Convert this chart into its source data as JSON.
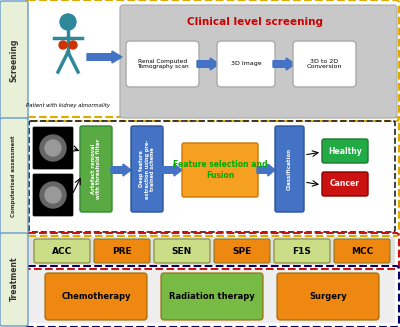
{
  "bg_color": "#ffffff",
  "screening_label": "Screening",
  "computerised_label": "Computerised assessment",
  "treatment_label": "Treatment",
  "clinical_title": "Clinical level screening",
  "patient_label": "Patient with kidney abnormality",
  "screening_boxes": [
    "Renal Computed\nTomography scan",
    "3D Image",
    "3D to 2D\nConversion"
  ],
  "comp_boxes": [
    "Artefact removal\nwith threshold filter",
    "Deep feature\nextraction using pre-\ntrained scheme",
    "Feature selection and\nFusion",
    "Classification"
  ],
  "metrics": [
    "ACC",
    "PRE",
    "SEN",
    "SPE",
    "F1S",
    "MCC"
  ],
  "treatments": [
    "Chemotherapy",
    "Radiation therapy",
    "Surgery"
  ],
  "healthy_label": "Healthy",
  "cancer_label": "Cancer",
  "arrow_color_blue": "#4472c4",
  "side_label_bg": "#e8f0d8",
  "side_label_border": "#6699cc",
  "clinical_box_bg": "#c8c8c8",
  "clinical_title_color": "#cc0000",
  "artefact_box_color": "#5aaa44",
  "deep_box_color": "#4472c4",
  "fusion_box_fill": "#f5a020",
  "fusion_text_color": "#00aa00",
  "classif_box_color": "#4472c4",
  "healthy_box_color": "#22aa44",
  "cancer_box_color": "#cc1111",
  "metrics_colors": [
    "#ccdd88",
    "#ee8810",
    "#ccdd88",
    "#ee8810",
    "#ccdd88",
    "#ee8810"
  ],
  "treatment_colors": [
    "#ee8810",
    "#77bb44",
    "#ee8810"
  ],
  "screening_outer_color": "#ddaa00",
  "comp_outer_color": "#ddaa00",
  "comp_inner_color": "#222222",
  "treatment_outer_color": "#ddaa00",
  "metrics_outer_color": "#cc1111",
  "person_color": "#2e8899",
  "kidney_color": "#cc3300"
}
